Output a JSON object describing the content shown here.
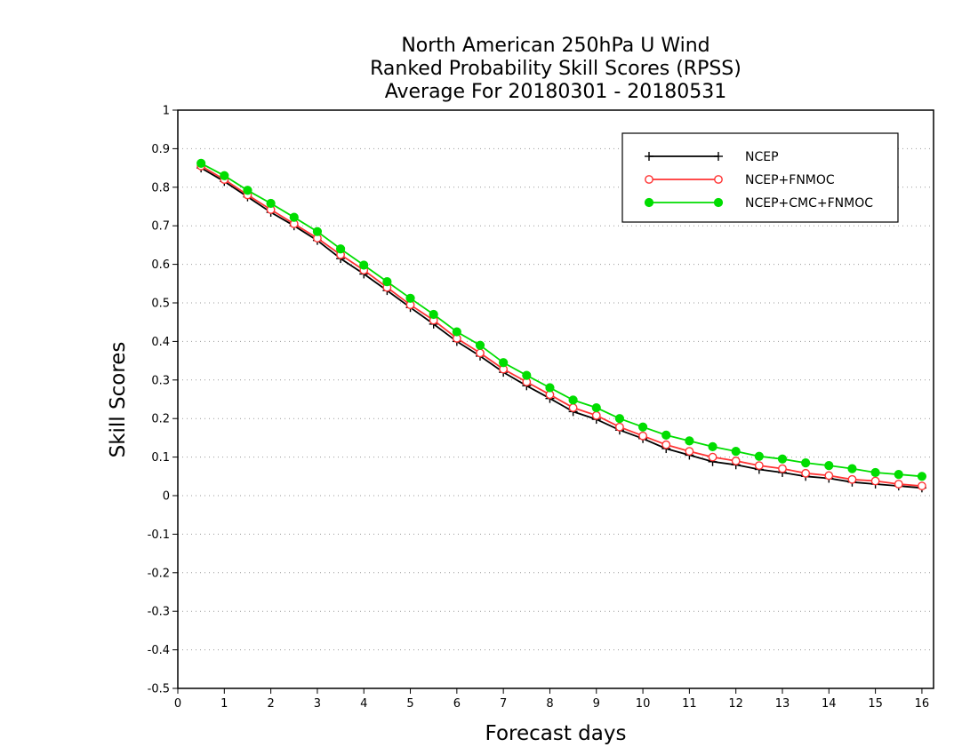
{
  "chart_data": {
    "type": "line",
    "title": [
      "North American 250hPa U Wind",
      "Ranked Probability Skill Scores (RPSS)",
      "Average For 20180301 - 20180531"
    ],
    "xlabel": "Forecast days",
    "ylabel": "Skill Scores",
    "xlim": [
      0,
      16.25
    ],
    "ylim": [
      -0.5,
      1
    ],
    "x_ticks": [
      "0",
      "1",
      "2",
      "3",
      "4",
      "5",
      "6",
      "7",
      "8",
      "9",
      "10",
      "11",
      "12",
      "13",
      "14",
      "15",
      "16"
    ],
    "y_ticks": [
      "1",
      "0.9",
      "0.8",
      "0.7",
      "0.6",
      "0.5",
      "0.4",
      "0.3",
      "0.2",
      "0.1",
      "0",
      "-0.1",
      "-0.2",
      "-0.3",
      "-0.4",
      "-0.5"
    ],
    "grid": "horizontal dotted",
    "legend_position": "top-right",
    "x": [
      0.5,
      1,
      1.5,
      2,
      2.5,
      3,
      3.5,
      4,
      4.5,
      5,
      5.5,
      6,
      6.5,
      7,
      7.5,
      8,
      8.5,
      9,
      9.5,
      10,
      10.5,
      11,
      11.5,
      12,
      12.5,
      13,
      13.5,
      14,
      14.5,
      15,
      15.5,
      16
    ],
    "series": [
      {
        "name": "NCEP",
        "color": "#000000",
        "marker": "plus",
        "values": [
          0.85,
          0.815,
          0.775,
          0.735,
          0.7,
          0.662,
          0.615,
          0.575,
          0.532,
          0.488,
          0.445,
          0.4,
          0.362,
          0.32,
          0.285,
          0.252,
          0.218,
          0.198,
          0.17,
          0.148,
          0.122,
          0.105,
          0.088,
          0.08,
          0.068,
          0.06,
          0.05,
          0.045,
          0.035,
          0.03,
          0.025,
          0.02
        ]
      },
      {
        "name": "NCEP+FNMOC",
        "color": "#ff3333",
        "marker": "open-circle",
        "values": [
          0.855,
          0.82,
          0.78,
          0.742,
          0.705,
          0.668,
          0.625,
          0.585,
          0.54,
          0.495,
          0.455,
          0.408,
          0.37,
          0.328,
          0.295,
          0.262,
          0.228,
          0.208,
          0.178,
          0.155,
          0.132,
          0.115,
          0.1,
          0.09,
          0.078,
          0.07,
          0.058,
          0.052,
          0.042,
          0.038,
          0.03,
          0.025
        ]
      },
      {
        "name": "NCEP+CMC+FNMOC",
        "color": "#00dd00",
        "marker": "filled-circle",
        "values": [
          0.862,
          0.83,
          0.792,
          0.758,
          0.722,
          0.685,
          0.64,
          0.598,
          0.555,
          0.512,
          0.47,
          0.425,
          0.39,
          0.345,
          0.312,
          0.28,
          0.248,
          0.228,
          0.2,
          0.178,
          0.157,
          0.142,
          0.127,
          0.115,
          0.102,
          0.095,
          0.085,
          0.078,
          0.07,
          0.06,
          0.055,
          0.05
        ]
      }
    ]
  }
}
